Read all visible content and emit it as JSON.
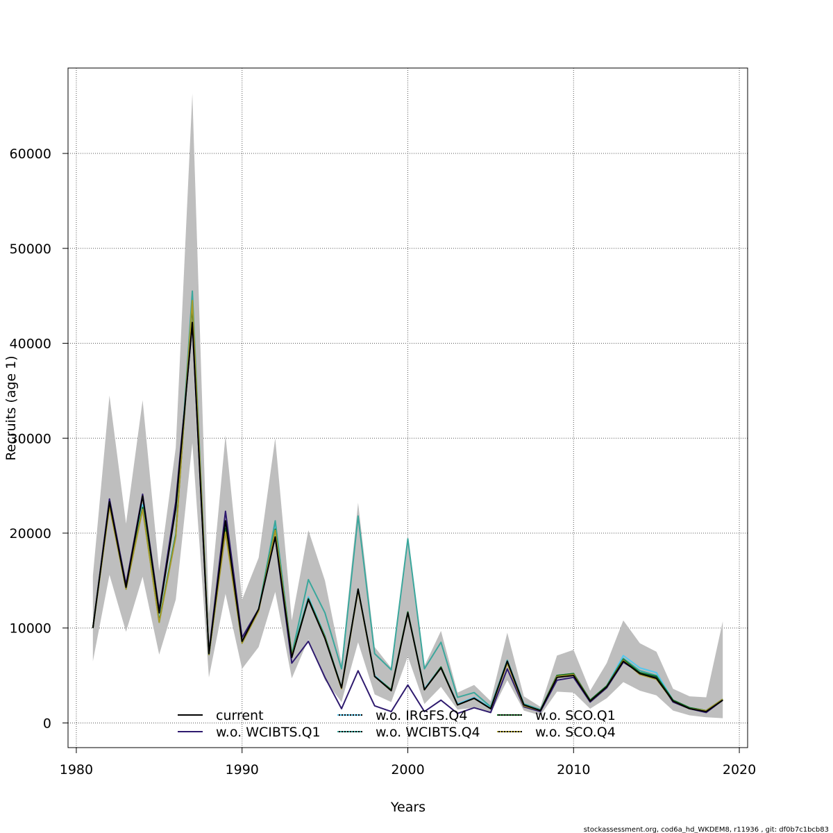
{
  "chart_data": {
    "type": "line",
    "xlabel": "Years",
    "ylabel": "Recruits (age 1)",
    "xlim": [
      1979.5,
      2020.5
    ],
    "ylim": [
      -2600,
      69000
    ],
    "xticks": [
      1980,
      1990,
      2000,
      2010,
      2020
    ],
    "yticks": [
      0,
      10000,
      20000,
      30000,
      40000,
      50000,
      60000
    ],
    "grid": true,
    "legend_position": "bottom-center",
    "footer": "stockassessment.org, cod6a_hd_WKDEM8, r11936 , git: df0b7c1bcb83",
    "x": [
      1981,
      1982,
      1983,
      1984,
      1985,
      1986,
      1987,
      1988,
      1989,
      1990,
      1991,
      1992,
      1993,
      1994,
      1995,
      1996,
      1997,
      1998,
      1999,
      2000,
      2001,
      2002,
      2003,
      2004,
      2005,
      2006,
      2007,
      2008,
      2009,
      2010,
      2011,
      2012,
      2013,
      2014,
      2015,
      2016,
      2017,
      2018,
      2019
    ],
    "band": {
      "lower": [
        6500,
        15600,
        9600,
        15400,
        7200,
        13000,
        29500,
        4800,
        13600,
        5700,
        8000,
        13800,
        4700,
        8800,
        4500,
        2200,
        8500,
        3000,
        2200,
        7000,
        2000,
        3800,
        1400,
        1600,
        1000,
        4500,
        1300,
        800,
        3300,
        3200,
        1500,
        2600,
        4300,
        3400,
        2900,
        1300,
        800,
        600,
        500
      ],
      "upper": [
        15500,
        34500,
        21000,
        34000,
        16000,
        29000,
        66300,
        11500,
        30300,
        13000,
        17400,
        30000,
        10800,
        20300,
        15000,
        6300,
        23200,
        8000,
        5800,
        19800,
        6000,
        9700,
        3200,
        4000,
        2300,
        9500,
        2800,
        1700,
        7100,
        7700,
        3400,
        6300,
        10800,
        8400,
        7500,
        3600,
        2800,
        2700,
        10700
      ]
    },
    "series": [
      {
        "name": "current",
        "color": "#000000",
        "dashed": false,
        "values": [
          10000,
          23300,
          14300,
          23900,
          11600,
          22600,
          42200,
          7300,
          21300,
          8600,
          12000,
          19600,
          6900,
          13000,
          8900,
          3700,
          14100,
          4900,
          3400,
          11600,
          3500,
          5800,
          1900,
          2600,
          1500,
          6500,
          1900,
          1300,
          4800,
          5000,
          2300,
          3800,
          6500,
          5200,
          4700,
          2300,
          1500,
          1200,
          2400
        ]
      },
      {
        "name": "w.o. WCIBTS.Q1",
        "color": "#2e1a6e",
        "dashed": false,
        "values": [
          10000,
          23600,
          14600,
          24100,
          11900,
          23300,
          42000,
          7400,
          22300,
          9000,
          12000,
          19600,
          6300,
          8600,
          4800,
          1500,
          5500,
          1800,
          1200,
          4000,
          1200,
          2400,
          1000,
          1600,
          1100,
          5700,
          1700,
          1200,
          4500,
          4800,
          2200,
          3700,
          6400,
          5300,
          4800,
          2200,
          1500,
          1100,
          2400
        ]
      },
      {
        "name": "w.o. IRGFS.Q4",
        "color": "#55c8f0",
        "dashed": true,
        "values": [
          10000,
          23200,
          14200,
          23000,
          10800,
          20000,
          45000,
          7200,
          20800,
          8500,
          12000,
          21000,
          7200,
          13300,
          9200,
          3700,
          14100,
          5000,
          3500,
          11700,
          3600,
          5900,
          2000,
          2700,
          1600,
          6600,
          2000,
          1400,
          4900,
          5100,
          2400,
          3900,
          7100,
          5800,
          5300,
          2400,
          1600,
          1300,
          2500
        ]
      },
      {
        "name": "w.o. WCIBTS.Q4",
        "color": "#3aa79c",
        "dashed": true,
        "values": [
          10000,
          23000,
          14100,
          22600,
          10600,
          19700,
          45500,
          7200,
          20300,
          8400,
          11900,
          21300,
          7200,
          15100,
          11600,
          5700,
          21800,
          7300,
          5600,
          19400,
          5700,
          8500,
          2700,
          3200,
          1700,
          6600,
          2000,
          1400,
          5000,
          5200,
          2400,
          3900,
          6800,
          5500,
          5000,
          2400,
          1600,
          1300,
          2500
        ]
      },
      {
        "name": "w.o. SCO.Q1",
        "color": "#0f6b1e",
        "dashed": true,
        "values": [
          10000,
          23000,
          14200,
          22700,
          10700,
          19800,
          44000,
          7200,
          20500,
          8500,
          11900,
          20400,
          7100,
          13100,
          9100,
          3700,
          14100,
          4900,
          3500,
          11700,
          3500,
          5900,
          1900,
          2600,
          1500,
          6400,
          1900,
          1300,
          5000,
          5200,
          2400,
          3900,
          6700,
          5300,
          4900,
          2400,
          1600,
          1300,
          2500
        ]
      },
      {
        "name": "w.o. SCO.Q4",
        "color": "#a89a2a",
        "dashed": true,
        "values": [
          10000,
          22800,
          14100,
          22500,
          10600,
          19600,
          44500,
          7200,
          20100,
          8400,
          11800,
          20300,
          7000,
          13000,
          9000,
          3600,
          14000,
          4900,
          3400,
          11600,
          3500,
          5800,
          1900,
          2600,
          1500,
          6300,
          1800,
          1300,
          4900,
          5100,
          2300,
          3800,
          6600,
          5100,
          4600,
          2300,
          1500,
          1300,
          2500
        ]
      }
    ]
  }
}
